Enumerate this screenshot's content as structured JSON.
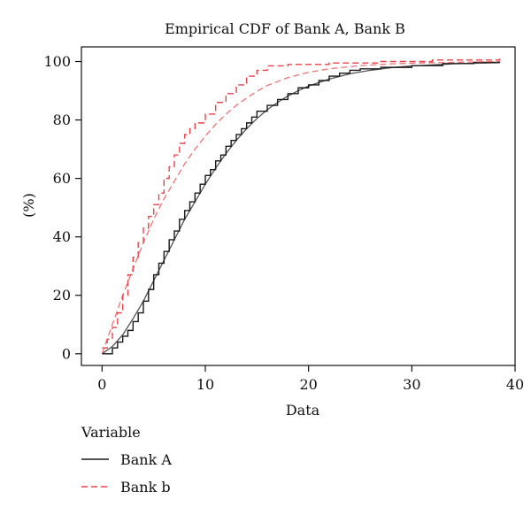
{
  "chart_data": {
    "type": "line",
    "title": "Empirical CDF of Bank A, Bank B",
    "xlabel": "Data",
    "ylabel": "(%)",
    "xlim": [
      -2,
      40
    ],
    "ylim": [
      -4,
      105
    ],
    "xticks": [
      0,
      10,
      20,
      30,
      40
    ],
    "yticks": [
      0,
      20,
      40,
      60,
      80,
      100
    ],
    "grid": false,
    "legend": {
      "title": "Variable",
      "position": "bottom-left",
      "entries": [
        "Bank A",
        "Bank b"
      ]
    },
    "series": [
      {
        "name": "Bank A",
        "color": "#1a1a1a",
        "dash": "solid",
        "ecdf_steps": [
          [
            0,
            0
          ],
          [
            1,
            2
          ],
          [
            1.5,
            4
          ],
          [
            2,
            6
          ],
          [
            2.5,
            8
          ],
          [
            3,
            11
          ],
          [
            3.5,
            14
          ],
          [
            4,
            18
          ],
          [
            4.5,
            22
          ],
          [
            5,
            27
          ],
          [
            5.5,
            31
          ],
          [
            6,
            35
          ],
          [
            6.5,
            39
          ],
          [
            7,
            42
          ],
          [
            7.5,
            46
          ],
          [
            8,
            49
          ],
          [
            8.5,
            52
          ],
          [
            9,
            55
          ],
          [
            9.5,
            58
          ],
          [
            10,
            61
          ],
          [
            10.5,
            63
          ],
          [
            11,
            66
          ],
          [
            11.5,
            68
          ],
          [
            12,
            71
          ],
          [
            12.5,
            73
          ],
          [
            13,
            75
          ],
          [
            13.5,
            77
          ],
          [
            14,
            79
          ],
          [
            14.5,
            81
          ],
          [
            15,
            83
          ],
          [
            16,
            85
          ],
          [
            17,
            87
          ],
          [
            18,
            89
          ],
          [
            19,
            91
          ],
          [
            20,
            92
          ],
          [
            21,
            93.5
          ],
          [
            22,
            95
          ],
          [
            23,
            96
          ],
          [
            24,
            97
          ],
          [
            25,
            97.5
          ],
          [
            27,
            98
          ],
          [
            30,
            98.6
          ],
          [
            33,
            99.3
          ],
          [
            36,
            99.7
          ],
          [
            38.5,
            100
          ]
        ],
        "fit_curve": [
          [
            0,
            0
          ],
          [
            1,
            2.5
          ],
          [
            2,
            6.5
          ],
          [
            3,
            12
          ],
          [
            4,
            18
          ],
          [
            5,
            25
          ],
          [
            6,
            32
          ],
          [
            7,
            39
          ],
          [
            8,
            46
          ],
          [
            9,
            52
          ],
          [
            10,
            58
          ],
          [
            11,
            63.5
          ],
          [
            12,
            68.5
          ],
          [
            13,
            73
          ],
          [
            14,
            77
          ],
          [
            15,
            80.5
          ],
          [
            16,
            83.5
          ],
          [
            17,
            86
          ],
          [
            18,
            88.2
          ],
          [
            19,
            90
          ],
          [
            20,
            91.6
          ],
          [
            22,
            94
          ],
          [
            24,
            95.8
          ],
          [
            26,
            97
          ],
          [
            28,
            97.9
          ],
          [
            30,
            98.5
          ],
          [
            34,
            99.2
          ],
          [
            38.5,
            99.6
          ]
        ]
      },
      {
        "name": "Bank b",
        "color": "#e8434a",
        "dash": "dashed",
        "ecdf_steps": [
          [
            0,
            2
          ],
          [
            0.5,
            5
          ],
          [
            1,
            9
          ],
          [
            1.5,
            14
          ],
          [
            2,
            20
          ],
          [
            2.5,
            27
          ],
          [
            3,
            33
          ],
          [
            3.5,
            38
          ],
          [
            4,
            43
          ],
          [
            4.5,
            47
          ],
          [
            5,
            51
          ],
          [
            5.5,
            55
          ],
          [
            6,
            60
          ],
          [
            6.5,
            64
          ],
          [
            7,
            68
          ],
          [
            7.5,
            72
          ],
          [
            8,
            75
          ],
          [
            8.5,
            77
          ],
          [
            9,
            79
          ],
          [
            10,
            82
          ],
          [
            11,
            86
          ],
          [
            12,
            89
          ],
          [
            13,
            92
          ],
          [
            14,
            95
          ],
          [
            15,
            97
          ],
          [
            16,
            98.5
          ],
          [
            18,
            99
          ],
          [
            22,
            99.5
          ],
          [
            27,
            100
          ],
          [
            32,
            100.5
          ],
          [
            38.5,
            101
          ]
        ],
        "fit_curve": [
          [
            0,
            0
          ],
          [
            1,
            10
          ],
          [
            2,
            20
          ],
          [
            3,
            29
          ],
          [
            4,
            38
          ],
          [
            5,
            46
          ],
          [
            6,
            53
          ],
          [
            7,
            59
          ],
          [
            8,
            65
          ],
          [
            9,
            70
          ],
          [
            10,
            74.5
          ],
          [
            11,
            78.5
          ],
          [
            12,
            82
          ],
          [
            13,
            85
          ],
          [
            14,
            87.5
          ],
          [
            15,
            89.8
          ],
          [
            16,
            91.8
          ],
          [
            18,
            94.5
          ],
          [
            20,
            96.3
          ],
          [
            22,
            97.5
          ],
          [
            25,
            98.6
          ],
          [
            28,
            99.2
          ],
          [
            32,
            99.6
          ],
          [
            38.5,
            100
          ]
        ]
      }
    ]
  }
}
